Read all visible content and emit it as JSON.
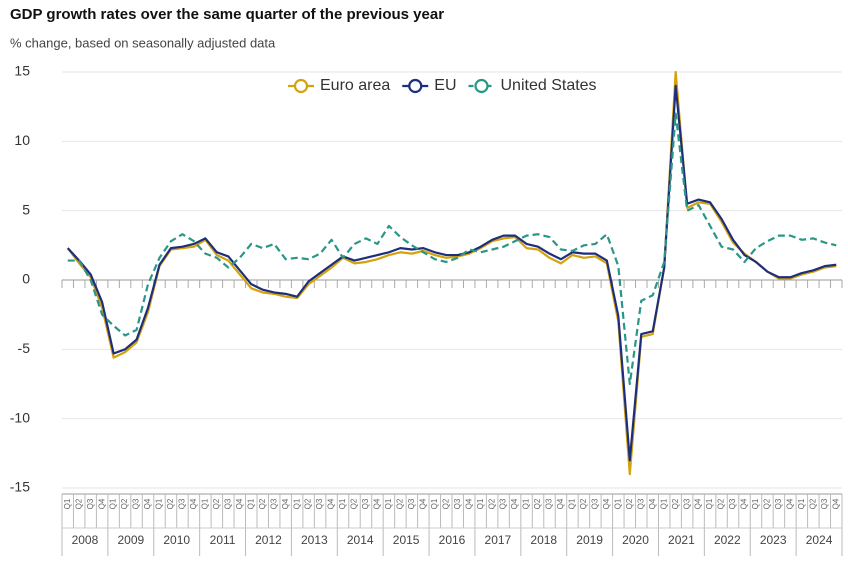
{
  "chart_data": {
    "type": "line",
    "title": "GDP growth rates over the same quarter of the previous year",
    "subtitle": "% change, based on seasonally adjusted data",
    "categories": [
      "Q1",
      "Q2",
      "Q3",
      "Q4",
      "Q1",
      "Q2",
      "Q3",
      "Q4",
      "Q1",
      "Q2",
      "Q3",
      "Q4",
      "Q1",
      "Q2",
      "Q3",
      "Q4",
      "Q1",
      "Q2",
      "Q3",
      "Q4",
      "Q1",
      "Q2",
      "Q3",
      "Q4",
      "Q1",
      "Q2",
      "Q3",
      "Q4",
      "Q1",
      "Q2",
      "Q3",
      "Q4",
      "Q1",
      "Q2",
      "Q3",
      "Q4",
      "Q1",
      "Q2",
      "Q3",
      "Q4",
      "Q1",
      "Q2",
      "Q3",
      "Q4",
      "Q1",
      "Q2",
      "Q3",
      "Q4",
      "Q1",
      "Q2",
      "Q3",
      "Q4",
      "Q1",
      "Q2",
      "Q3",
      "Q4",
      "Q1",
      "Q2",
      "Q3",
      "Q4",
      "Q1",
      "Q2",
      "Q3",
      "Q4",
      "Q1",
      "Q2",
      "Q3",
      "Q4"
    ],
    "years": [
      "2008",
      "2009",
      "2010",
      "2011",
      "2012",
      "2013",
      "2014",
      "2015",
      "2016",
      "2017",
      "2018",
      "2019",
      "2020",
      "2021",
      "2022",
      "2023",
      "2024"
    ],
    "series": [
      {
        "name": "Euro area",
        "color": "#d4a20c",
        "dashed": false,
        "values": [
          2.3,
          1.2,
          0.2,
          -2.0,
          -5.6,
          -5.2,
          -4.5,
          -2.3,
          1.0,
          2.2,
          2.3,
          2.4,
          2.9,
          1.8,
          1.4,
          0.4,
          -0.6,
          -0.9,
          -1.0,
          -1.2,
          -1.3,
          -0.3,
          0.3,
          0.9,
          1.6,
          1.2,
          1.3,
          1.5,
          1.8,
          2.0,
          1.9,
          2.1,
          1.8,
          1.6,
          1.7,
          1.9,
          2.3,
          2.8,
          3.0,
          3.1,
          2.3,
          2.2,
          1.6,
          1.2,
          1.8,
          1.6,
          1.7,
          1.2,
          -3.0,
          -14.0,
          -4.1,
          -3.9,
          0.9,
          15.0,
          5.2,
          5.6,
          5.5,
          4.2,
          2.7,
          1.9,
          1.3,
          0.6,
          0.1,
          0.1,
          0.4,
          0.6,
          0.9,
          1.0
        ]
      },
      {
        "name": "EU",
        "color": "#1d2f7a",
        "dashed": false,
        "values": [
          2.3,
          1.4,
          0.4,
          -1.6,
          -5.3,
          -5.0,
          -4.3,
          -2.0,
          1.1,
          2.3,
          2.4,
          2.6,
          3.0,
          2.0,
          1.7,
          0.7,
          -0.3,
          -0.7,
          -0.9,
          -1.0,
          -1.2,
          -0.1,
          0.5,
          1.1,
          1.7,
          1.4,
          1.6,
          1.8,
          2.0,
          2.3,
          2.2,
          2.3,
          2.0,
          1.8,
          1.8,
          2.0,
          2.4,
          2.9,
          3.2,
          3.2,
          2.6,
          2.4,
          1.9,
          1.5,
          2.0,
          1.9,
          1.9,
          1.4,
          -2.6,
          -13.0,
          -3.9,
          -3.7,
          0.9,
          14.0,
          5.5,
          5.8,
          5.6,
          4.4,
          2.9,
          1.8,
          1.3,
          0.6,
          0.2,
          0.2,
          0.5,
          0.7,
          1.0,
          1.1
        ]
      },
      {
        "name": "United States",
        "color": "#2a9688",
        "dashed": true,
        "values": [
          1.4,
          1.4,
          0.0,
          -2.5,
          -3.3,
          -4.0,
          -3.6,
          -0.3,
          1.6,
          2.8,
          3.3,
          2.8,
          1.9,
          1.6,
          0.9,
          1.6,
          2.6,
          2.3,
          2.6,
          1.5,
          1.6,
          1.5,
          1.9,
          2.9,
          1.6,
          2.6,
          3.0,
          2.6,
          3.9,
          3.1,
          2.5,
          2.0,
          1.5,
          1.3,
          1.6,
          2.2,
          2.0,
          2.2,
          2.4,
          2.8,
          3.2,
          3.3,
          3.1,
          2.2,
          2.1,
          2.5,
          2.6,
          3.3,
          1.0,
          -7.5,
          -1.5,
          -1.1,
          1.3,
          12.0,
          5.0,
          5.4,
          3.9,
          2.4,
          2.2,
          1.3,
          2.3,
          2.8,
          3.2,
          3.2,
          2.9,
          3.0,
          2.7,
          2.5
        ]
      }
    ],
    "ylim": [
      -15,
      15
    ],
    "yticks": [
      -15,
      -10,
      -5,
      0,
      5,
      10,
      15
    ],
    "grid": true,
    "legend": "top"
  }
}
